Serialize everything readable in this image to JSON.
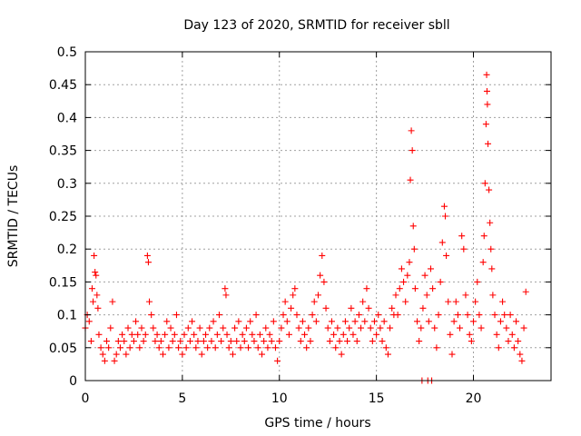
{
  "chart_data": {
    "type": "scatter",
    "title": "Day 123 of 2020, SRMTID for receiver sbll",
    "xlabel": "GPS time / hours",
    "ylabel": "SRMTID / TECUs",
    "xlim": [
      0,
      24
    ],
    "ylim": [
      0,
      0.5
    ],
    "x_ticks": [
      "0",
      "5",
      "10",
      "15",
      "20"
    ],
    "y_ticks": [
      "0",
      "0.05",
      "0.1",
      "0.15",
      "0.2",
      "0.25",
      "0.3",
      "0.35",
      "0.4",
      "0.45",
      "0.5"
    ],
    "grid": true,
    "marker": "+",
    "color": "#ff0000",
    "series": [
      {
        "name": "SRMTID",
        "points": [
          [
            0.0,
            0.08
          ],
          [
            0.1,
            0.1
          ],
          [
            0.2,
            0.09
          ],
          [
            0.3,
            0.06
          ],
          [
            0.35,
            0.14
          ],
          [
            0.4,
            0.12
          ],
          [
            0.45,
            0.19
          ],
          [
            0.5,
            0.165
          ],
          [
            0.55,
            0.16
          ],
          [
            0.6,
            0.13
          ],
          [
            0.65,
            0.11
          ],
          [
            0.7,
            0.07
          ],
          [
            0.8,
            0.05
          ],
          [
            0.9,
            0.04
          ],
          [
            1.0,
            0.03
          ],
          [
            1.1,
            0.06
          ],
          [
            1.2,
            0.05
          ],
          [
            1.3,
            0.08
          ],
          [
            1.4,
            0.12
          ],
          [
            1.5,
            0.03
          ],
          [
            1.6,
            0.04
          ],
          [
            1.7,
            0.06
          ],
          [
            1.8,
            0.05
          ],
          [
            1.9,
            0.07
          ],
          [
            2.0,
            0.06
          ],
          [
            2.1,
            0.04
          ],
          [
            2.2,
            0.08
          ],
          [
            2.3,
            0.05
          ],
          [
            2.4,
            0.07
          ],
          [
            2.5,
            0.06
          ],
          [
            2.6,
            0.09
          ],
          [
            2.7,
            0.07
          ],
          [
            2.8,
            0.05
          ],
          [
            2.9,
            0.08
          ],
          [
            3.0,
            0.06
          ],
          [
            3.1,
            0.07
          ],
          [
            3.2,
            0.19
          ],
          [
            3.25,
            0.18
          ],
          [
            3.3,
            0.12
          ],
          [
            3.4,
            0.1
          ],
          [
            3.5,
            0.08
          ],
          [
            3.6,
            0.06
          ],
          [
            3.7,
            0.07
          ],
          [
            3.8,
            0.05
          ],
          [
            3.9,
            0.06
          ],
          [
            4.0,
            0.04
          ],
          [
            4.1,
            0.07
          ],
          [
            4.2,
            0.09
          ],
          [
            4.3,
            0.05
          ],
          [
            4.4,
            0.08
          ],
          [
            4.5,
            0.06
          ],
          [
            4.6,
            0.07
          ],
          [
            4.7,
            0.1
          ],
          [
            4.8,
            0.05
          ],
          [
            4.9,
            0.06
          ],
          [
            5.0,
            0.04
          ],
          [
            5.1,
            0.07
          ],
          [
            5.2,
            0.05
          ],
          [
            5.3,
            0.08
          ],
          [
            5.4,
            0.06
          ],
          [
            5.5,
            0.09
          ],
          [
            5.6,
            0.07
          ],
          [
            5.7,
            0.05
          ],
          [
            5.8,
            0.06
          ],
          [
            5.9,
            0.08
          ],
          [
            6.0,
            0.04
          ],
          [
            6.1,
            0.06
          ],
          [
            6.2,
            0.07
          ],
          [
            6.3,
            0.05
          ],
          [
            6.4,
            0.08
          ],
          [
            6.5,
            0.06
          ],
          [
            6.6,
            0.09
          ],
          [
            6.7,
            0.05
          ],
          [
            6.8,
            0.07
          ],
          [
            6.9,
            0.1
          ],
          [
            7.0,
            0.06
          ],
          [
            7.1,
            0.08
          ],
          [
            7.2,
            0.14
          ],
          [
            7.25,
            0.13
          ],
          [
            7.3,
            0.07
          ],
          [
            7.4,
            0.05
          ],
          [
            7.5,
            0.06
          ],
          [
            7.6,
            0.04
          ],
          [
            7.7,
            0.08
          ],
          [
            7.8,
            0.06
          ],
          [
            7.9,
            0.09
          ],
          [
            8.0,
            0.05
          ],
          [
            8.1,
            0.07
          ],
          [
            8.2,
            0.06
          ],
          [
            8.3,
            0.08
          ],
          [
            8.4,
            0.05
          ],
          [
            8.5,
            0.09
          ],
          [
            8.6,
            0.07
          ],
          [
            8.7,
            0.06
          ],
          [
            8.8,
            0.1
          ],
          [
            8.9,
            0.05
          ],
          [
            9.0,
            0.07
          ],
          [
            9.1,
            0.04
          ],
          [
            9.2,
            0.06
          ],
          [
            9.3,
            0.08
          ],
          [
            9.4,
            0.05
          ],
          [
            9.5,
            0.07
          ],
          [
            9.6,
            0.06
          ],
          [
            9.7,
            0.09
          ],
          [
            9.8,
            0.05
          ],
          [
            9.9,
            0.03
          ],
          [
            10.0,
            0.06
          ],
          [
            10.1,
            0.08
          ],
          [
            10.2,
            0.1
          ],
          [
            10.3,
            0.12
          ],
          [
            10.4,
            0.09
          ],
          [
            10.5,
            0.07
          ],
          [
            10.6,
            0.11
          ],
          [
            10.7,
            0.13
          ],
          [
            10.8,
            0.14
          ],
          [
            10.9,
            0.1
          ],
          [
            11.0,
            0.08
          ],
          [
            11.1,
            0.06
          ],
          [
            11.2,
            0.09
          ],
          [
            11.3,
            0.07
          ],
          [
            11.4,
            0.05
          ],
          [
            11.5,
            0.08
          ],
          [
            11.6,
            0.06
          ],
          [
            11.7,
            0.1
          ],
          [
            11.8,
            0.12
          ],
          [
            11.9,
            0.09
          ],
          [
            12.0,
            0.13
          ],
          [
            12.1,
            0.16
          ],
          [
            12.2,
            0.19
          ],
          [
            12.3,
            0.15
          ],
          [
            12.4,
            0.11
          ],
          [
            12.5,
            0.08
          ],
          [
            12.6,
            0.06
          ],
          [
            12.7,
            0.09
          ],
          [
            12.8,
            0.07
          ],
          [
            12.9,
            0.05
          ],
          [
            13.0,
            0.08
          ],
          [
            13.1,
            0.06
          ],
          [
            13.2,
            0.04
          ],
          [
            13.3,
            0.07
          ],
          [
            13.4,
            0.09
          ],
          [
            13.5,
            0.06
          ],
          [
            13.6,
            0.08
          ],
          [
            13.7,
            0.11
          ],
          [
            13.8,
            0.07
          ],
          [
            13.9,
            0.09
          ],
          [
            14.0,
            0.06
          ],
          [
            14.1,
            0.1
          ],
          [
            14.2,
            0.08
          ],
          [
            14.3,
            0.12
          ],
          [
            14.4,
            0.09
          ],
          [
            14.5,
            0.14
          ],
          [
            14.6,
            0.11
          ],
          [
            14.7,
            0.08
          ],
          [
            14.8,
            0.06
          ],
          [
            14.9,
            0.09
          ],
          [
            15.0,
            0.07
          ],
          [
            15.1,
            0.1
          ],
          [
            15.2,
            0.08
          ],
          [
            15.3,
            0.06
          ],
          [
            15.4,
            0.09
          ],
          [
            15.5,
            0.05
          ],
          [
            15.6,
            0.04
          ],
          [
            15.7,
            0.08
          ],
          [
            15.8,
            0.11
          ],
          [
            15.9,
            0.1
          ],
          [
            16.0,
            0.13
          ],
          [
            16.1,
            0.1
          ],
          [
            16.2,
            0.14
          ],
          [
            16.3,
            0.17
          ],
          [
            16.4,
            0.15
          ],
          [
            16.5,
            0.12
          ],
          [
            16.6,
            0.16
          ],
          [
            16.7,
            0.18
          ],
          [
            16.75,
            0.305
          ],
          [
            16.8,
            0.38
          ],
          [
            16.85,
            0.35
          ],
          [
            16.9,
            0.235
          ],
          [
            16.95,
            0.2
          ],
          [
            17.0,
            0.14
          ],
          [
            17.1,
            0.09
          ],
          [
            17.2,
            0.06
          ],
          [
            17.3,
            0.08
          ],
          [
            17.35,
            0.0
          ],
          [
            17.4,
            0.11
          ],
          [
            17.5,
            0.16
          ],
          [
            17.6,
            0.13
          ],
          [
            17.65,
            0.0
          ],
          [
            17.7,
            0.09
          ],
          [
            17.8,
            0.17
          ],
          [
            17.85,
            0.0
          ],
          [
            17.9,
            0.14
          ],
          [
            18.0,
            0.08
          ],
          [
            18.1,
            0.05
          ],
          [
            18.2,
            0.1
          ],
          [
            18.3,
            0.15
          ],
          [
            18.4,
            0.21
          ],
          [
            18.5,
            0.265
          ],
          [
            18.55,
            0.25
          ],
          [
            18.6,
            0.19
          ],
          [
            18.7,
            0.12
          ],
          [
            18.8,
            0.07
          ],
          [
            18.9,
            0.04
          ],
          [
            19.0,
            0.09
          ],
          [
            19.1,
            0.12
          ],
          [
            19.2,
            0.1
          ],
          [
            19.3,
            0.08
          ],
          [
            19.4,
            0.22
          ],
          [
            19.5,
            0.2
          ],
          [
            19.6,
            0.13
          ],
          [
            19.7,
            0.1
          ],
          [
            19.8,
            0.07
          ],
          [
            19.9,
            0.06
          ],
          [
            20.0,
            0.09
          ],
          [
            20.1,
            0.12
          ],
          [
            20.2,
            0.15
          ],
          [
            20.3,
            0.1
          ],
          [
            20.4,
            0.08
          ],
          [
            20.5,
            0.18
          ],
          [
            20.55,
            0.22
          ],
          [
            20.6,
            0.3
          ],
          [
            20.65,
            0.39
          ],
          [
            20.68,
            0.465
          ],
          [
            20.7,
            0.44
          ],
          [
            20.72,
            0.42
          ],
          [
            20.75,
            0.36
          ],
          [
            20.8,
            0.29
          ],
          [
            20.85,
            0.24
          ],
          [
            20.9,
            0.2
          ],
          [
            20.95,
            0.17
          ],
          [
            21.0,
            0.13
          ],
          [
            21.1,
            0.1
          ],
          [
            21.2,
            0.07
          ],
          [
            21.3,
            0.05
          ],
          [
            21.4,
            0.09
          ],
          [
            21.5,
            0.12
          ],
          [
            21.6,
            0.1
          ],
          [
            21.7,
            0.08
          ],
          [
            21.8,
            0.06
          ],
          [
            21.9,
            0.1
          ],
          [
            22.0,
            0.07
          ],
          [
            22.1,
            0.05
          ],
          [
            22.2,
            0.09
          ],
          [
            22.3,
            0.06
          ],
          [
            22.4,
            0.04
          ],
          [
            22.5,
            0.03
          ],
          [
            22.6,
            0.08
          ],
          [
            22.7,
            0.135
          ]
        ]
      }
    ]
  }
}
